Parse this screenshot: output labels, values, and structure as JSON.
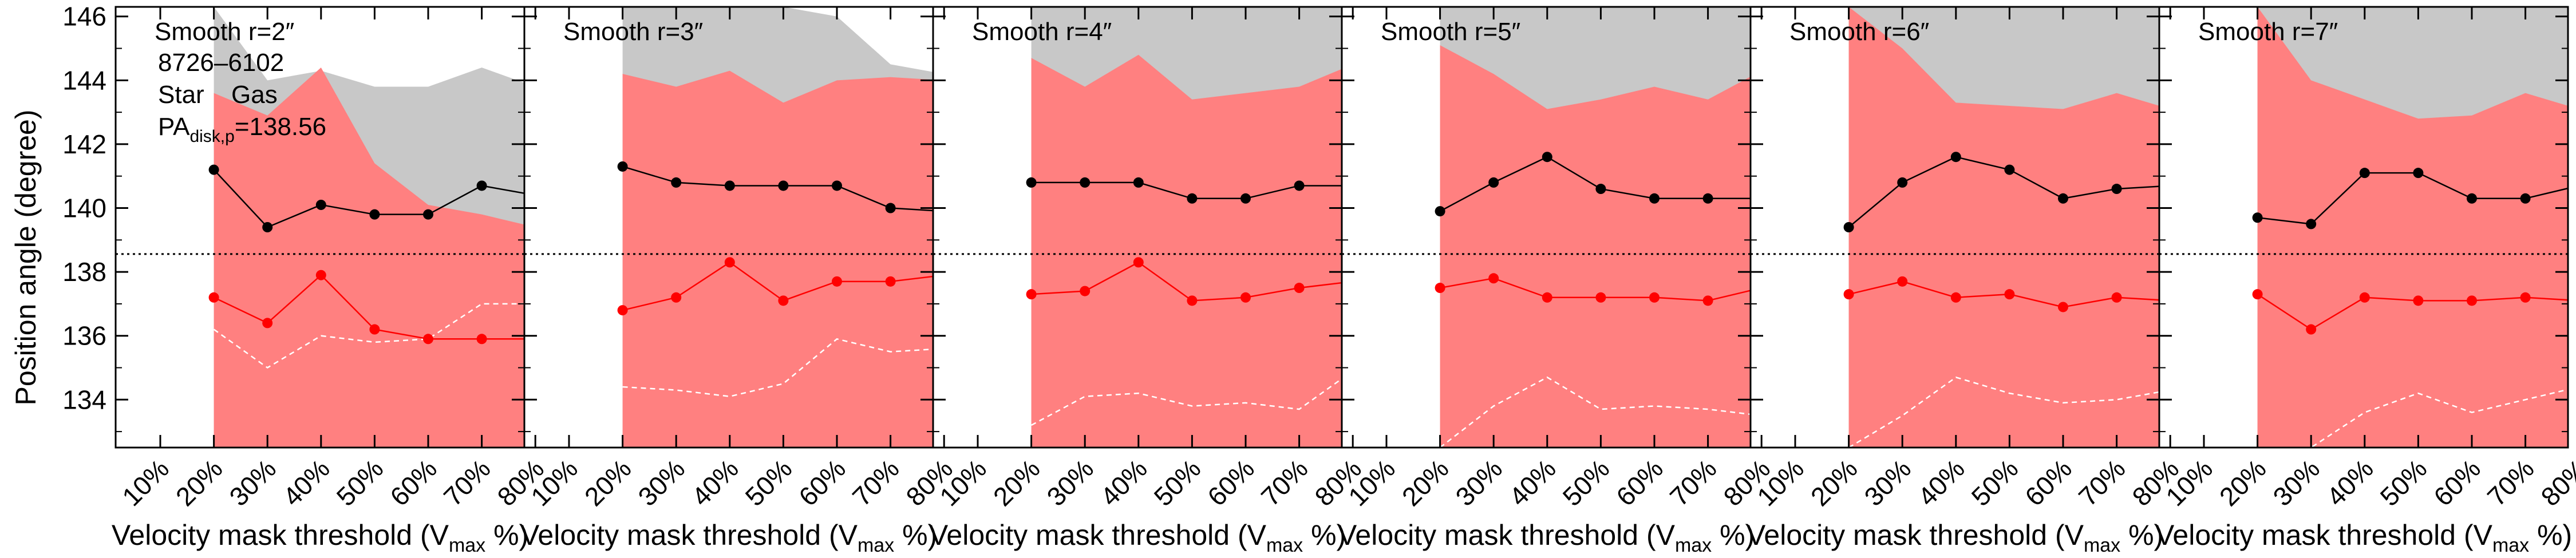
{
  "figure": {
    "ylabel": "Position angle (degree)",
    "xlabel_main": "Velocity mask threshold (V",
    "xlabel_sub": "max",
    "xlabel_end": " %)"
  },
  "legend": {
    "galaxy_id": "8726–6102",
    "star_label": "Star",
    "gas_label": "Gas",
    "pa_main": "PA",
    "pa_sub": "disk,p",
    "pa_value": "=138.56"
  },
  "colors": {
    "gas_band": "#ff8080",
    "star_band": "#c8c8c8",
    "gas_line": "#ff0000",
    "star_line": "#000000",
    "ref_line": "#000000"
  },
  "chart_data": {
    "type": "line",
    "categories": [
      "10%",
      "20%",
      "30%",
      "40%",
      "50%",
      "60%",
      "70%",
      "80%"
    ],
    "ylim": [
      132.5,
      146.3
    ],
    "yticks": [
      134,
      136,
      138,
      140,
      142,
      144,
      146
    ],
    "reference_pa": 138.56,
    "panels": [
      {
        "label": "Smooth r=2″",
        "star": [
          null,
          141.2,
          139.4,
          140.1,
          139.8,
          139.8,
          140.7,
          140.4
        ],
        "gas": [
          null,
          137.2,
          136.4,
          137.9,
          136.2,
          135.9,
          135.9,
          135.9
        ],
        "star_band_upper": [
          null,
          146.3,
          144.0,
          144.3,
          143.8,
          143.8,
          144.4,
          143.8
        ],
        "gas_band_upper": [
          null,
          143.6,
          142.9,
          144.4,
          141.4,
          140.1,
          139.8,
          139.4
        ],
        "gas_lower_dashed": [
          null,
          136.2,
          135.0,
          136.0,
          135.8,
          135.9,
          137.0,
          137.0
        ]
      },
      {
        "label": "Smooth r=3″",
        "star": [
          null,
          141.3,
          140.8,
          140.7,
          140.7,
          140.7,
          140.0,
          139.9
        ],
        "gas": [
          null,
          136.8,
          137.2,
          138.3,
          137.1,
          137.7,
          137.7,
          137.9
        ],
        "star_band_upper": [
          null,
          146.3,
          146.3,
          146.3,
          146.3,
          146.0,
          144.5,
          144.2
        ],
        "gas_band_upper": [
          null,
          144.2,
          143.8,
          144.3,
          143.3,
          144.0,
          144.1,
          144.0
        ],
        "gas_lower_dashed": [
          null,
          134.4,
          134.3,
          134.1,
          134.5,
          135.9,
          135.5,
          135.6
        ]
      },
      {
        "label": "Smooth r=4″",
        "star": [
          null,
          140.8,
          140.8,
          140.8,
          140.3,
          140.3,
          140.7,
          140.7
        ],
        "gas": [
          null,
          137.3,
          137.4,
          138.3,
          137.1,
          137.2,
          137.5,
          137.7
        ],
        "star_band_upper": [
          null,
          146.3,
          146.3,
          146.3,
          146.3,
          146.3,
          146.3,
          146.3
        ],
        "gas_band_upper": [
          null,
          144.7,
          143.8,
          144.8,
          143.4,
          143.6,
          143.8,
          144.5
        ],
        "gas_lower_dashed": [
          null,
          133.2,
          134.1,
          134.2,
          133.8,
          133.9,
          133.7,
          134.9
        ]
      },
      {
        "label": "Smooth r=5″",
        "star": [
          null,
          139.9,
          140.8,
          141.6,
          140.6,
          140.3,
          140.3,
          140.3
        ],
        "gas": [
          null,
          137.5,
          137.8,
          137.2,
          137.2,
          137.2,
          137.1,
          137.5
        ],
        "star_band_upper": [
          null,
          146.3,
          146.3,
          146.3,
          146.3,
          146.3,
          146.3,
          146.3
        ],
        "gas_band_upper": [
          null,
          145.1,
          144.2,
          143.1,
          143.4,
          143.8,
          143.4,
          144.3
        ],
        "gas_lower_dashed": [
          null,
          132.5,
          133.8,
          134.7,
          133.7,
          133.8,
          133.7,
          133.5
        ]
      },
      {
        "label": "Smooth r=6″",
        "star": [
          null,
          139.4,
          140.8,
          141.6,
          141.2,
          140.3,
          140.6,
          140.7
        ],
        "gas": [
          null,
          137.3,
          137.7,
          137.2,
          137.3,
          136.9,
          137.2,
          137.1
        ],
        "star_band_upper": [
          null,
          146.3,
          146.3,
          146.3,
          146.3,
          146.3,
          146.3,
          146.3
        ],
        "gas_band_upper": [
          null,
          146.3,
          145.0,
          143.3,
          143.2,
          143.1,
          143.6,
          143.1
        ],
        "gas_lower_dashed": [
          null,
          132.5,
          133.5,
          134.7,
          134.2,
          133.9,
          134.0,
          134.3
        ]
      },
      {
        "label": "Smooth r=7″",
        "star": [
          null,
          139.7,
          139.5,
          141.1,
          141.1,
          140.3,
          140.3,
          140.7
        ],
        "gas": [
          null,
          137.3,
          136.2,
          137.2,
          137.1,
          137.1,
          137.2,
          137.1
        ],
        "star_band_upper": [
          null,
          146.3,
          146.3,
          146.3,
          146.3,
          146.3,
          146.3,
          146.3
        ],
        "gas_band_upper": [
          null,
          146.3,
          144.0,
          143.4,
          142.8,
          142.9,
          143.6,
          143.1
        ],
        "gas_lower_dashed": [
          null,
          132.5,
          132.5,
          133.6,
          134.2,
          133.6,
          134.0,
          134.4
        ]
      }
    ]
  }
}
